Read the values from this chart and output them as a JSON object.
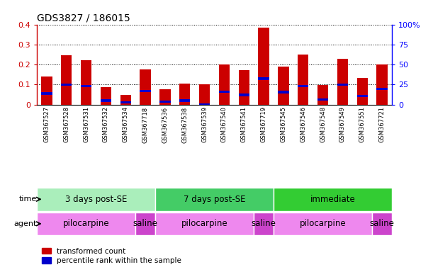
{
  "title": "GDS3827 / 186015",
  "samples": [
    "GSM367527",
    "GSM367528",
    "GSM367531",
    "GSM367532",
    "GSM367534",
    "GSM367718",
    "GSM367536",
    "GSM367538",
    "GSM367539",
    "GSM367540",
    "GSM367541",
    "GSM367719",
    "GSM367545",
    "GSM367546",
    "GSM367548",
    "GSM367549",
    "GSM367551",
    "GSM367721"
  ],
  "red_values": [
    0.14,
    0.245,
    0.22,
    0.088,
    0.048,
    0.175,
    0.075,
    0.105,
    0.102,
    0.2,
    0.172,
    0.385,
    0.188,
    0.25,
    0.097,
    0.23,
    0.133,
    0.2
  ],
  "blue_values": [
    0.055,
    0.1,
    0.093,
    0.02,
    0.01,
    0.068,
    0.015,
    0.02,
    0.0,
    0.065,
    0.048,
    0.13,
    0.063,
    0.092,
    0.025,
    0.1,
    0.042,
    0.078
  ],
  "red_color": "#cc0000",
  "blue_color": "#0000cc",
  "ylim": [
    0,
    0.4
  ],
  "y2lim": [
    0,
    100
  ],
  "yticks": [
    0,
    0.1,
    0.2,
    0.3,
    0.4
  ],
  "y2ticks": [
    0,
    25,
    50,
    75,
    100
  ],
  "ytick_labels": [
    "0",
    "0.1",
    "0.2",
    "0.3",
    "0.4"
  ],
  "y2tick_labels": [
    "0",
    "25",
    "50",
    "75",
    "100%"
  ],
  "grid_color": "black",
  "bg_color": "white",
  "time_groups": [
    {
      "label": "3 days post-SE",
      "start": 0,
      "end": 6,
      "color": "#aaeebb"
    },
    {
      "label": "7 days post-SE",
      "start": 6,
      "end": 12,
      "color": "#44cc66"
    },
    {
      "label": "immediate",
      "start": 12,
      "end": 18,
      "color": "#33cc33"
    }
  ],
  "agent_groups": [
    {
      "label": "pilocarpine",
      "start": 0,
      "end": 5,
      "color": "#ee88ee"
    },
    {
      "label": "saline",
      "start": 5,
      "end": 6,
      "color": "#cc44cc"
    },
    {
      "label": "pilocarpine",
      "start": 6,
      "end": 11,
      "color": "#ee88ee"
    },
    {
      "label": "saline",
      "start": 11,
      "end": 12,
      "color": "#cc44cc"
    },
    {
      "label": "pilocarpine",
      "start": 12,
      "end": 17,
      "color": "#ee88ee"
    },
    {
      "label": "saline",
      "start": 17,
      "end": 18,
      "color": "#cc44cc"
    }
  ],
  "legend_red": "transformed count",
  "legend_blue": "percentile rank within the sample",
  "time_label": "time",
  "agent_label": "agent",
  "bar_width": 0.55,
  "blue_bar_height": 0.012
}
